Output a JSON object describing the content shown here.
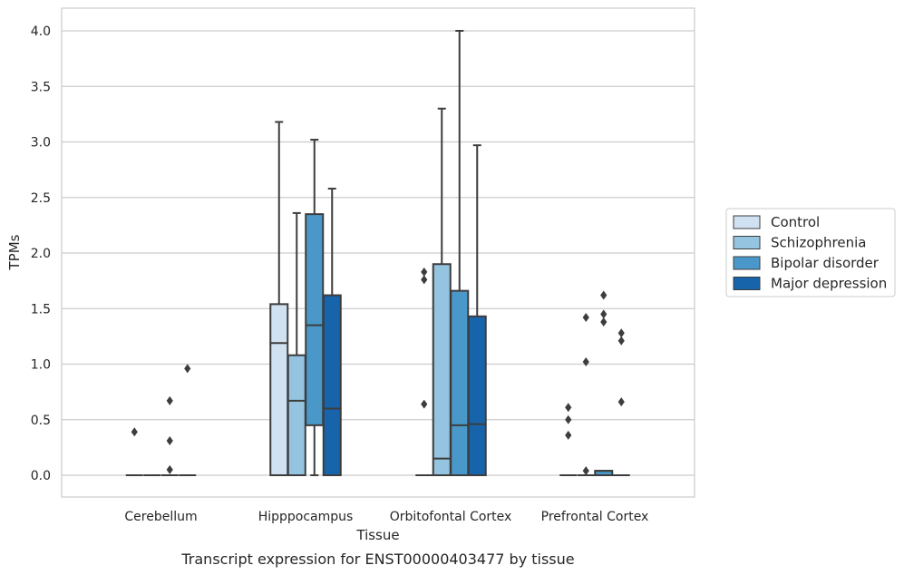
{
  "chart_data": {
    "type": "box",
    "xlabel": "Tissue",
    "ylabel": "TPMs",
    "caption": "Transcript expression for ENST00000403477 by tissue",
    "ylim": [
      -0.2,
      4.2
    ],
    "yticks": [
      0.0,
      0.5,
      1.0,
      1.5,
      2.0,
      2.5,
      3.0,
      3.5,
      4.0
    ],
    "ytick_labels": [
      "0.0",
      "0.5",
      "1.0",
      "1.5",
      "2.0",
      "2.5",
      "3.0",
      "3.5",
      "4.0"
    ],
    "categories": [
      "Cerebellum",
      "Hipppocampus",
      "Orbitofontal Cortex",
      "Prefrontal Cortex"
    ],
    "grid": "horizontal",
    "legend_position": "right",
    "series": [
      {
        "name": "Control",
        "color": "#d0e1f2",
        "boxes": [
          {
            "q1": 0.0,
            "median": 0.0,
            "q3": 0.0,
            "whisker_low": 0.0,
            "whisker_high": 0.0,
            "outliers": [
              0.39
            ]
          },
          {
            "q1": 0.0,
            "median": 1.19,
            "q3": 1.54,
            "whisker_low": 0.0,
            "whisker_high": 3.18,
            "outliers": []
          },
          {
            "q1": 0.0,
            "median": 0.0,
            "q3": 0.0,
            "whisker_low": 0.0,
            "whisker_high": 0.0,
            "outliers": [
              0.64,
              1.76,
              1.83
            ]
          },
          {
            "q1": 0.0,
            "median": 0.0,
            "q3": 0.0,
            "whisker_low": 0.0,
            "whisker_high": 0.0,
            "outliers": [
              0.36,
              0.5,
              0.61
            ]
          }
        ]
      },
      {
        "name": "Schizophrenia",
        "color": "#94c4df",
        "boxes": [
          {
            "q1": 0.0,
            "median": 0.0,
            "q3": 0.0,
            "whisker_low": 0.0,
            "whisker_high": 0.0,
            "outliers": []
          },
          {
            "q1": 0.0,
            "median": 0.67,
            "q3": 1.08,
            "whisker_low": 0.0,
            "whisker_high": 2.36,
            "outliers": []
          },
          {
            "q1": 0.0,
            "median": 0.15,
            "q3": 1.9,
            "whisker_low": 0.0,
            "whisker_high": 3.3,
            "outliers": []
          },
          {
            "q1": 0.0,
            "median": 0.0,
            "q3": 0.0,
            "whisker_low": 0.0,
            "whisker_high": 0.0,
            "outliers": [
              0.04,
              1.02,
              1.42
            ]
          }
        ]
      },
      {
        "name": "Bipolar disorder",
        "color": "#4a98c9",
        "boxes": [
          {
            "q1": 0.0,
            "median": 0.0,
            "q3": 0.0,
            "whisker_low": 0.0,
            "whisker_high": 0.0,
            "outliers": [
              0.05,
              0.31,
              0.67
            ]
          },
          {
            "q1": 0.45,
            "median": 1.35,
            "q3": 2.35,
            "whisker_low": 0.0,
            "whisker_high": 3.02,
            "outliers": []
          },
          {
            "q1": 0.0,
            "median": 0.45,
            "q3": 1.66,
            "whisker_low": 0.0,
            "whisker_high": 4.0,
            "outliers": []
          },
          {
            "q1": 0.0,
            "median": 0.04,
            "q3": 0.04,
            "whisker_low": 0.0,
            "whisker_high": 0.04,
            "outliers": [
              1.38,
              1.45,
              1.62
            ]
          }
        ]
      },
      {
        "name": "Major depression",
        "color": "#1764ab",
        "boxes": [
          {
            "q1": 0.0,
            "median": 0.0,
            "q3": 0.0,
            "whisker_low": 0.0,
            "whisker_high": 0.0,
            "outliers": [
              0.96
            ]
          },
          {
            "q1": 0.0,
            "median": 0.6,
            "q3": 1.62,
            "whisker_low": 0.0,
            "whisker_high": 2.58,
            "outliers": []
          },
          {
            "q1": 0.0,
            "median": 0.46,
            "q3": 1.43,
            "whisker_low": 0.0,
            "whisker_high": 2.97,
            "outliers": []
          },
          {
            "q1": 0.0,
            "median": 0.0,
            "q3": 0.0,
            "whisker_low": 0.0,
            "whisker_high": 0.0,
            "outliers": [
              0.66,
              1.21,
              1.28
            ]
          }
        ]
      }
    ]
  }
}
